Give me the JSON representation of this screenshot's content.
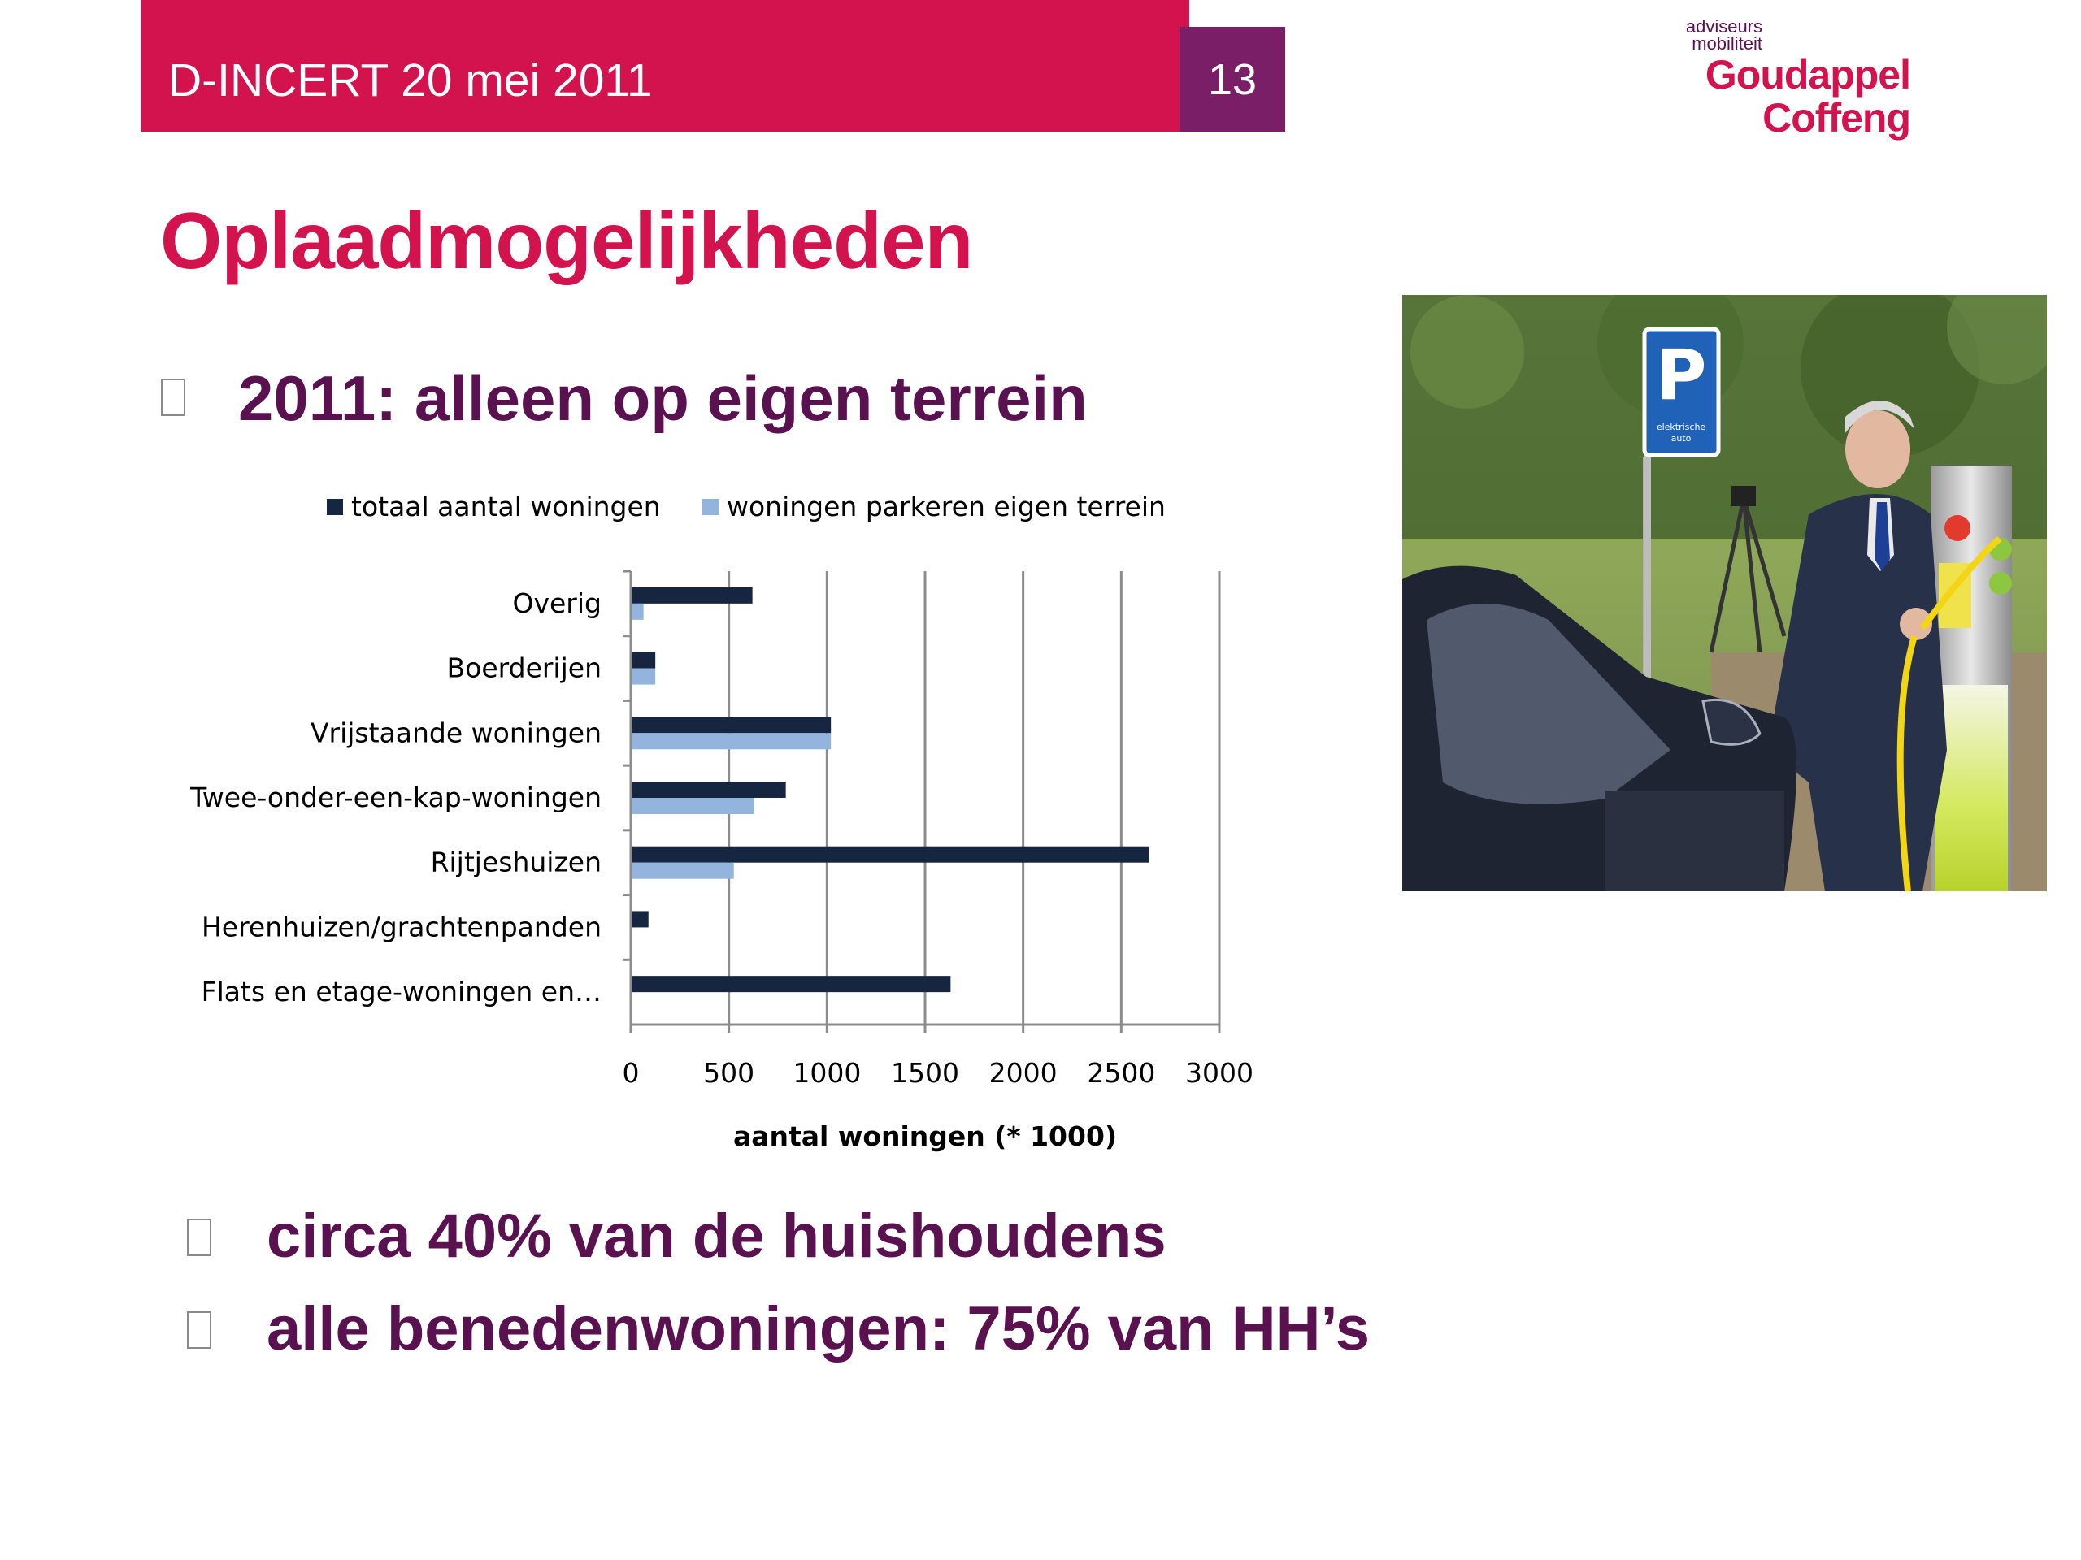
{
  "header": {
    "title": "D-INCERT 20 mei 2011",
    "page_number": "13",
    "bar_color": "#d2134d",
    "page_color": "#7a1e67"
  },
  "logo": {
    "tagline_1": "adviseurs",
    "tagline_2": "mobiliteit",
    "name_1": "Goudappel",
    "name_2": "Coffeng"
  },
  "slide": {
    "title": "Oplaadmogelijkheden",
    "bullet_1": "2011: alleen op eigen terrein",
    "bullet_2": "circa 40% van de huishoudens",
    "bullet_3": "alle benedenwoningen: 75% van HH’s"
  },
  "photo": {
    "sign_letter": "P",
    "sign_caption_1": "elektrische",
    "sign_caption_2": "auto"
  },
  "chart_data": {
    "type": "bar",
    "orientation": "horizontal",
    "categories": [
      "Overig",
      "Boerderijen",
      "Vrijstaande woningen",
      "Twee-onder-een-kap-woningen",
      "Rijtjeshuizen",
      "Herenhuizen/grachtenpanden",
      "Flats en etage-woningen en…"
    ],
    "series": [
      {
        "name": "totaal aantal woningen",
        "color": "#172640",
        "values": [
          620,
          125,
          1020,
          790,
          2640,
          90,
          1630
        ]
      },
      {
        "name": "woningen parkeren eigen terrein",
        "color": "#93b4dd",
        "values": [
          65,
          125,
          1020,
          630,
          525,
          0,
          0
        ]
      }
    ],
    "xlabel": "aantal woningen (* 1000)",
    "ylabel": "",
    "xlim": [
      0,
      3000
    ],
    "ticks": [
      "0",
      "500",
      "1000",
      "1500",
      "2000",
      "2500",
      "3000"
    ],
    "grid": true,
    "legend": "top"
  }
}
